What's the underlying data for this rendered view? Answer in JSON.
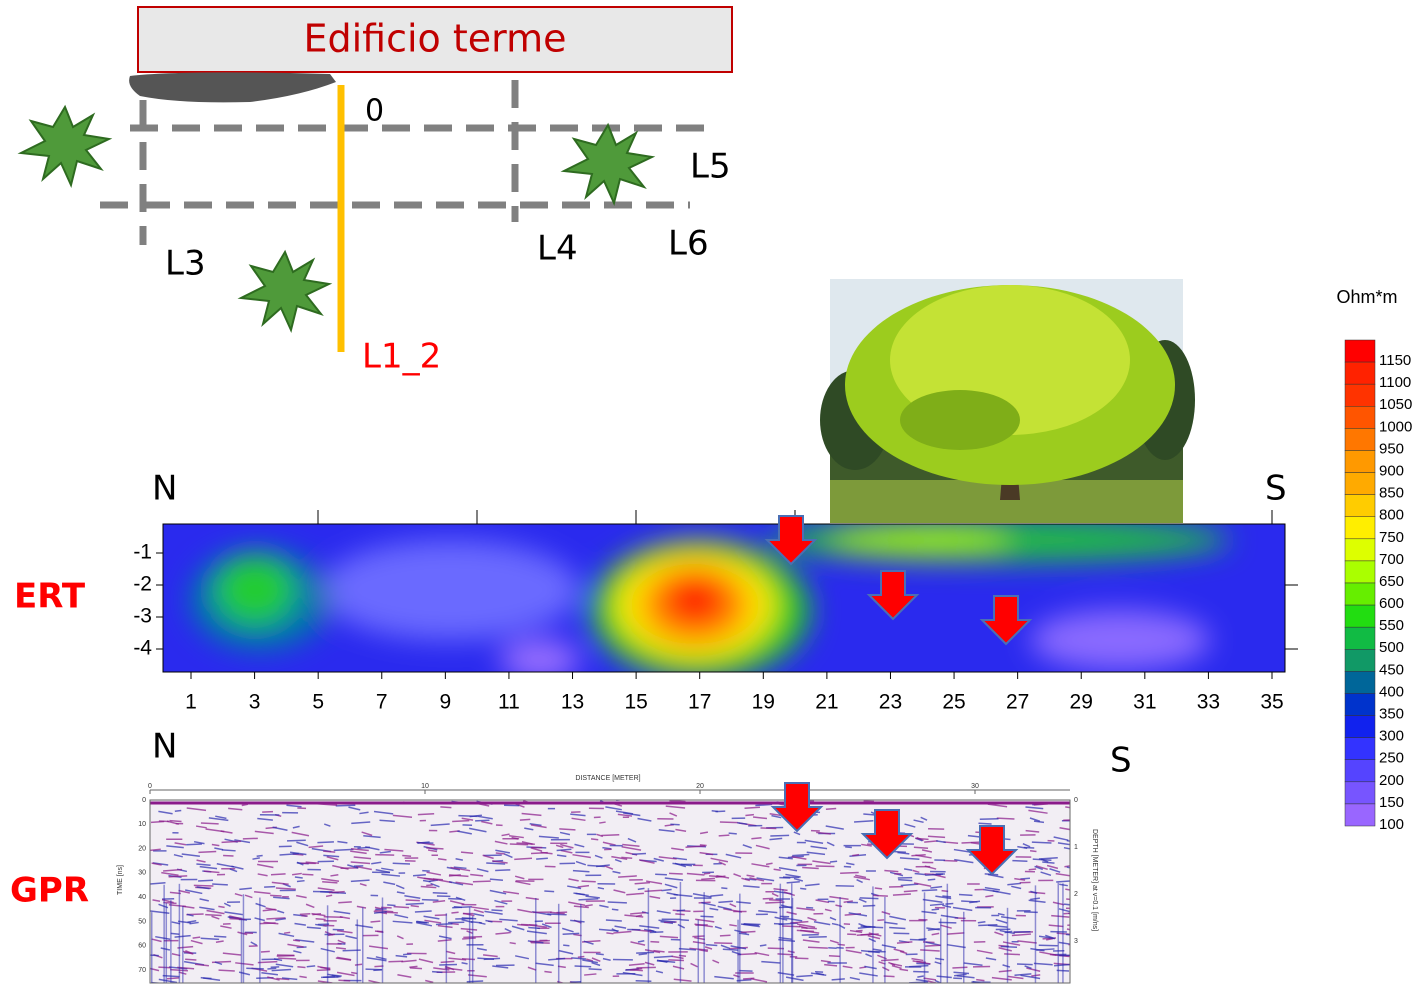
{
  "map": {
    "building": "Edificio terme",
    "origin": "0",
    "lines": [
      "L5",
      "L3",
      "L4",
      "L6"
    ],
    "profile": "L1_2"
  },
  "ert": {
    "label": "ERT",
    "north": "N",
    "south": "S",
    "yticks": [
      "-1",
      "-2",
      "-3",
      "-4"
    ],
    "xticks": [
      "1",
      "3",
      "5",
      "7",
      "9",
      "11",
      "13",
      "15",
      "17",
      "19",
      "21",
      "23",
      "25",
      "27",
      "29",
      "31",
      "33",
      "35"
    ]
  },
  "gpr": {
    "label": "GPR",
    "north": "N",
    "south": "S",
    "x_title": "DISTANCE [METER]",
    "xticks": [
      "0",
      "10",
      "20",
      "30"
    ],
    "y_title": "TIME [ns]",
    "yticks": [
      "0",
      "10",
      "20",
      "30",
      "40",
      "50",
      "60",
      "70"
    ],
    "y2_title": "DEPTH [METER] at v=0.1 [m/ns]",
    "y2ticks": [
      "0",
      "1",
      "2",
      "3"
    ]
  },
  "colorbar": {
    "title": "Ohm*m",
    "levels": [
      "1150",
      "1100",
      "1050",
      "1000",
      "950",
      "900",
      "850",
      "800",
      "750",
      "700",
      "650",
      "600",
      "550",
      "500",
      "450",
      "400",
      "350",
      "300",
      "250",
      "200",
      "150",
      "100"
    ],
    "colors": [
      "#ff0000",
      "#ff2200",
      "#ff3300",
      "#ff5500",
      "#ff7700",
      "#ff9900",
      "#ffaa00",
      "#ffcc00",
      "#ffee00",
      "#ddff00",
      "#aaff00",
      "#66ee00",
      "#22dd11",
      "#11bb44",
      "#119966",
      "#006699",
      "#0033cc",
      "#1122ee",
      "#3333ff",
      "#5544ff",
      "#7755ff",
      "#9966ff"
    ]
  }
}
